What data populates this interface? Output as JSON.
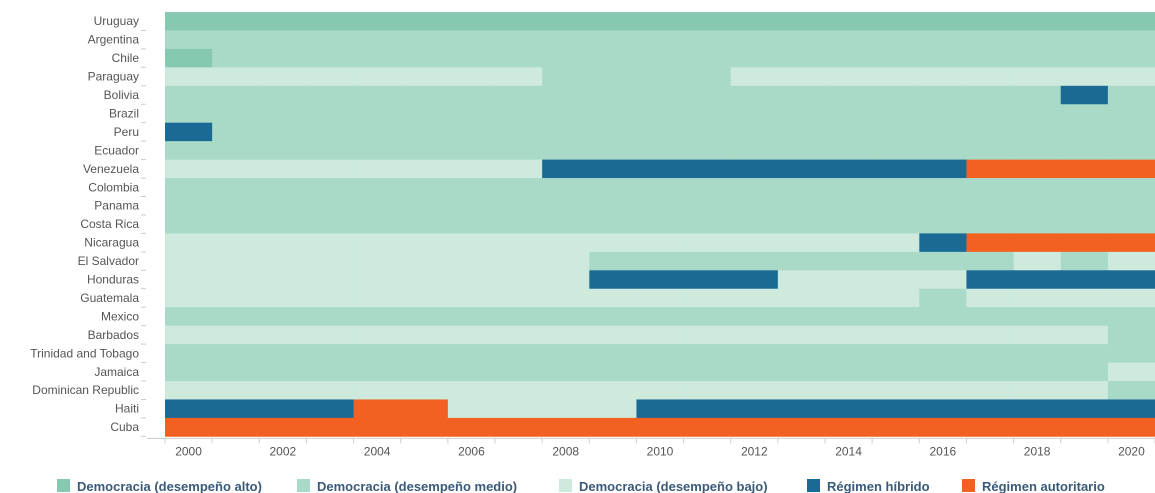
{
  "chart_data": {
    "type": "heatmap",
    "x": [
      2000,
      2001,
      2002,
      2003,
      2004,
      2005,
      2006,
      2007,
      2008,
      2009,
      2010,
      2011,
      2012,
      2013,
      2014,
      2015,
      2016,
      2017,
      2018,
      2019,
      2020
    ],
    "xlim": [
      2000,
      2020
    ],
    "x_ticks": [
      "2000",
      "2002",
      "2004",
      "2006",
      "2008",
      "2010",
      "2012",
      "2014",
      "2016",
      "2018",
      "2020"
    ],
    "categories": [
      "Democracia (desempeño alto)",
      "Democracia (desempeño medio)",
      "Democracia (desempeño bajo)",
      "Régimen híbrido",
      "Régimen autoritario"
    ],
    "colors": [
      "#86c9b0",
      "#a8dac7",
      "#cdeadd",
      "#1b6a96",
      "#f26122"
    ],
    "legend_position": "bottom",
    "grid": false,
    "rows": [
      {
        "country": "Uruguay",
        "values": [
          0,
          0,
          0,
          0,
          0,
          0,
          0,
          0,
          0,
          0,
          0,
          0,
          0,
          0,
          0,
          0,
          0,
          0,
          0,
          0,
          0
        ]
      },
      {
        "country": "Argentina",
        "values": [
          1,
          1,
          1,
          1,
          1,
          1,
          1,
          1,
          1,
          1,
          1,
          1,
          1,
          1,
          1,
          1,
          1,
          1,
          1,
          1,
          1
        ]
      },
      {
        "country": "Chile",
        "values": [
          0,
          1,
          1,
          1,
          1,
          1,
          1,
          1,
          1,
          1,
          1,
          1,
          1,
          1,
          1,
          1,
          1,
          1,
          1,
          1,
          1
        ]
      },
      {
        "country": "Paraguay",
        "values": [
          2,
          2,
          2,
          2,
          2,
          2,
          2,
          2,
          1,
          1,
          1,
          1,
          2,
          2,
          2,
          2,
          2,
          2,
          2,
          2,
          2
        ]
      },
      {
        "country": "Bolivia",
        "values": [
          1,
          1,
          1,
          1,
          1,
          1,
          1,
          1,
          1,
          1,
          1,
          1,
          1,
          1,
          1,
          1,
          1,
          1,
          1,
          3,
          1
        ]
      },
      {
        "country": "Brazil",
        "values": [
          1,
          1,
          1,
          1,
          1,
          1,
          1,
          1,
          1,
          1,
          1,
          1,
          1,
          1,
          1,
          1,
          1,
          1,
          1,
          1,
          1
        ]
      },
      {
        "country": "Peru",
        "values": [
          3,
          1,
          1,
          1,
          1,
          1,
          1,
          1,
          1,
          1,
          1,
          1,
          1,
          1,
          1,
          1,
          1,
          1,
          1,
          1,
          1
        ]
      },
      {
        "country": "Ecuador",
        "values": [
          1,
          1,
          1,
          1,
          1,
          1,
          1,
          1,
          1,
          1,
          1,
          1,
          1,
          1,
          1,
          1,
          1,
          1,
          1,
          1,
          1
        ]
      },
      {
        "country": "Venezuela",
        "values": [
          2,
          2,
          2,
          2,
          2,
          2,
          2,
          2,
          3,
          3,
          3,
          3,
          3,
          3,
          3,
          3,
          3,
          4,
          4,
          4,
          4
        ]
      },
      {
        "country": "Colombia",
        "values": [
          1,
          1,
          1,
          1,
          1,
          1,
          1,
          1,
          1,
          1,
          1,
          1,
          1,
          1,
          1,
          1,
          1,
          1,
          1,
          1,
          1
        ]
      },
      {
        "country": "Panama",
        "values": [
          1,
          1,
          1,
          1,
          1,
          1,
          1,
          1,
          1,
          1,
          1,
          1,
          1,
          1,
          1,
          1,
          1,
          1,
          1,
          1,
          1
        ]
      },
      {
        "country": "Costa Rica",
        "values": [
          1,
          1,
          1,
          1,
          1,
          1,
          1,
          1,
          1,
          1,
          1,
          1,
          1,
          1,
          1,
          1,
          1,
          1,
          1,
          1,
          1
        ]
      },
      {
        "country": "Nicaragua",
        "values": [
          2,
          2,
          2,
          2,
          2,
          2,
          2,
          2,
          2,
          2,
          2,
          2,
          2,
          2,
          2,
          2,
          3,
          4,
          4,
          4,
          4
        ]
      },
      {
        "country": "El Salvador",
        "values": [
          2,
          2,
          2,
          2,
          2,
          2,
          2,
          2,
          2,
          1,
          1,
          1,
          1,
          1,
          1,
          1,
          1,
          1,
          2,
          1,
          2
        ]
      },
      {
        "country": "Honduras",
        "values": [
          2,
          2,
          2,
          2,
          2,
          2,
          2,
          2,
          2,
          3,
          3,
          3,
          3,
          2,
          2,
          2,
          2,
          3,
          3,
          3,
          3
        ]
      },
      {
        "country": "Guatemala",
        "values": [
          2,
          2,
          2,
          2,
          2,
          2,
          2,
          2,
          2,
          2,
          2,
          2,
          2,
          2,
          2,
          2,
          1,
          2,
          2,
          2,
          2
        ]
      },
      {
        "country": "Mexico",
        "values": [
          1,
          1,
          1,
          1,
          1,
          1,
          1,
          1,
          1,
          1,
          1,
          1,
          1,
          1,
          1,
          1,
          1,
          1,
          1,
          1,
          1
        ]
      },
      {
        "country": "Barbados",
        "values": [
          2,
          2,
          2,
          2,
          2,
          2,
          2,
          2,
          2,
          2,
          2,
          2,
          2,
          2,
          2,
          2,
          2,
          2,
          2,
          2,
          1
        ]
      },
      {
        "country": "Trinidad and Tobago",
        "values": [
          1,
          1,
          1,
          1,
          1,
          1,
          1,
          1,
          1,
          1,
          1,
          1,
          1,
          1,
          1,
          1,
          1,
          1,
          1,
          1,
          1
        ]
      },
      {
        "country": "Jamaica",
        "values": [
          1,
          1,
          1,
          1,
          1,
          1,
          1,
          1,
          1,
          1,
          1,
          1,
          1,
          1,
          1,
          1,
          1,
          1,
          1,
          1,
          2
        ]
      },
      {
        "country": "Dominican Republic",
        "values": [
          2,
          2,
          2,
          2,
          2,
          2,
          2,
          2,
          2,
          2,
          2,
          2,
          2,
          2,
          2,
          2,
          2,
          2,
          2,
          2,
          1
        ]
      },
      {
        "country": "Haiti",
        "values": [
          3,
          3,
          3,
          3,
          4,
          4,
          2,
          2,
          2,
          2,
          3,
          3,
          3,
          3,
          3,
          3,
          3,
          3,
          3,
          3,
          3
        ]
      },
      {
        "country": "Cuba",
        "values": [
          4,
          4,
          4,
          4,
          4,
          4,
          4,
          4,
          4,
          4,
          4,
          4,
          4,
          4,
          4,
          4,
          4,
          4,
          4,
          4,
          4
        ]
      }
    ]
  }
}
